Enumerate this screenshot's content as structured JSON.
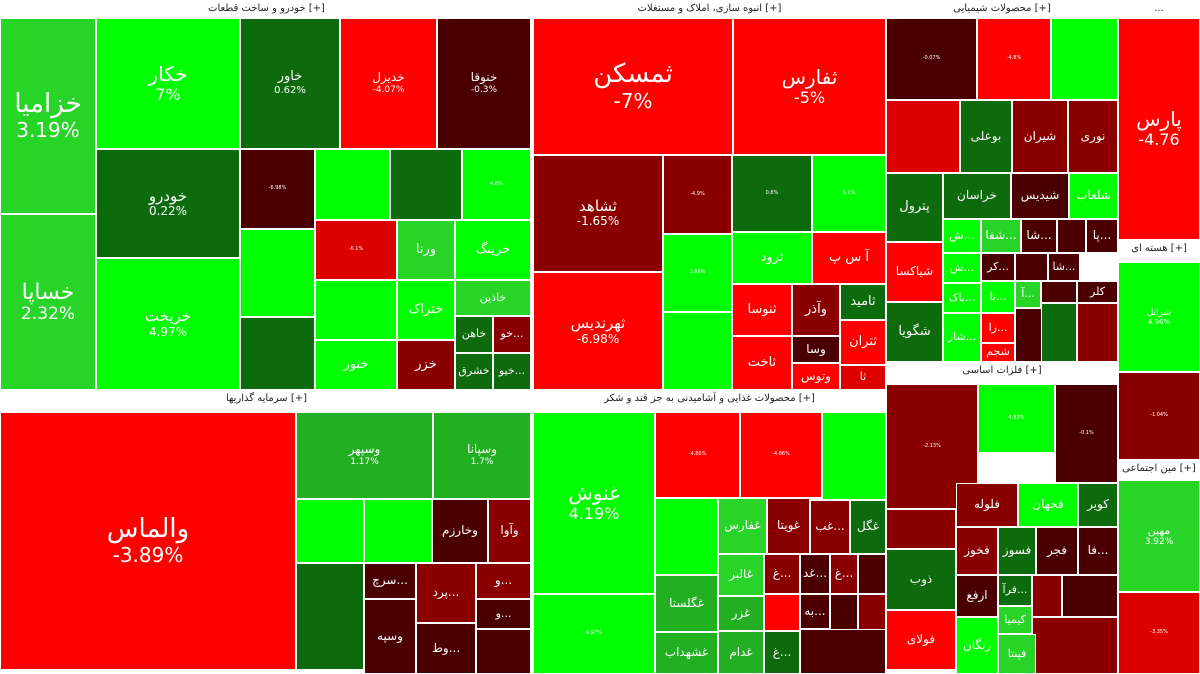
{
  "chart_data": {
    "type": "treemap",
    "title": "",
    "colors": {
      "strong_up": "#00ff00",
      "up": "#29d429",
      "mid_up": "#22b022",
      "weak_up": "#0d6b0d",
      "strong_down": "#ff0000",
      "down": "#dd0000",
      "mid_down": "#8a0000",
      "weak_down": "#4a0000"
    },
    "sectors": [
      {
        "title": "خودرو و ساخت قطعات [+]",
        "tiles": [
          {
            "symbol": "خزامیا",
            "change": "3.19%",
            "color": "up"
          },
          {
            "symbol": "خساپا",
            "change": "2.32%",
            "color": "up"
          },
          {
            "symbol": "خکار",
            "change": "7%",
            "color": "strong_up"
          },
          {
            "symbol": "خودرو",
            "change": "0.22%",
            "color": "weak_up"
          },
          {
            "symbol": "خریخت",
            "change": "4.97%",
            "color": "strong_up"
          },
          {
            "symbol": "خاور",
            "change": "0.62%",
            "color": "weak_up"
          },
          {
            "symbol": "خدیزل",
            "change": "-4.07%",
            "color": "strong_down"
          },
          {
            "symbol": "خنوقا",
            "change": "-0.3%",
            "color": "weak_down"
          },
          {
            "symbol": "",
            "change": "-6.98%",
            "color": "weak_down"
          },
          {
            "symbol": "",
            "change": "",
            "color": "strong_up"
          },
          {
            "symbol": "",
            "change": "",
            "color": "weak_up"
          },
          {
            "symbol": "",
            "change": "4.6%",
            "color": "strong_up"
          },
          {
            "symbol": "",
            "change": "",
            "color": "strong_up"
          },
          {
            "symbol": "",
            "change": "",
            "color": "weak_up"
          },
          {
            "symbol": "",
            "change": "-6.1%",
            "color": "down"
          },
          {
            "symbol": "ورنا",
            "change": "",
            "color": "up"
          },
          {
            "symbol": "خرینگ",
            "change": "",
            "color": "strong_up"
          },
          {
            "symbol": "",
            "change": "",
            "color": "strong_up"
          },
          {
            "symbol": "ختراک",
            "change": "",
            "color": "strong_up"
          },
          {
            "symbol": "خاذین",
            "change": "",
            "color": "up"
          },
          {
            "symbol": "ختور",
            "change": "",
            "color": "strong_up"
          },
          {
            "symbol": "خزر",
            "change": "",
            "color": "mid_down"
          },
          {
            "symbol": "خاهن",
            "change": "",
            "color": "weak_up"
          },
          {
            "symbol": "خو...",
            "change": "",
            "color": "mid_down"
          },
          {
            "symbol": "خشرق",
            "change": "",
            "color": "weak_up"
          },
          {
            "symbol": "خیو...",
            "change": "",
            "color": "weak_up"
          }
        ]
      },
      {
        "title": "انبوه سازی، املاک و مستغلات [+]",
        "tiles": [
          {
            "symbol": "ثمسکن",
            "change": "-7%",
            "color": "strong_down"
          },
          {
            "symbol": "ثفارس",
            "change": "-5%",
            "color": "strong_down"
          },
          {
            "symbol": "ثشاهد",
            "change": "-1.65%",
            "color": "mid_down"
          },
          {
            "symbol": "",
            "change": "-4.9%",
            "color": "mid_down"
          },
          {
            "symbol": "",
            "change": "0.8%",
            "color": "weak_up"
          },
          {
            "symbol": "",
            "change": "5.1%",
            "color": "strong_up"
          },
          {
            "symbol": "ثهرندیس",
            "change": "-6.98%",
            "color": "strong_down"
          },
          {
            "symbol": "",
            "change": "3.66%",
            "color": "strong_up"
          },
          {
            "symbol": "ثرود",
            "change": "",
            "color": "strong_up"
          },
          {
            "symbol": "آ س پ",
            "change": "",
            "color": "strong_down"
          },
          {
            "symbol": "ثنوسا",
            "change": "",
            "color": "strong_down"
          },
          {
            "symbol": "وآذر",
            "change": "",
            "color": "mid_down"
          },
          {
            "symbol": "ثامید",
            "change": "",
            "color": "weak_up"
          },
          {
            "symbol": "",
            "change": "",
            "color": "strong_up"
          },
          {
            "symbol": "ثاخت",
            "change": "",
            "color": "strong_down"
          },
          {
            "symbol": "وسا",
            "change": "",
            "color": "weak_down"
          },
          {
            "symbol": "ثتران",
            "change": "",
            "color": "strong_down"
          },
          {
            "symbol": "وتوس",
            "change": "",
            "color": "strong_down"
          },
          {
            "symbol": "ثا",
            "change": "",
            "color": "down"
          }
        ]
      },
      {
        "title": "محصولات شیمیایی [+]",
        "tiles": [
          {
            "symbol": "",
            "change": "-0.07%",
            "color": "weak_down"
          },
          {
            "symbol": "",
            "change": "-4.8%",
            "color": "strong_down"
          },
          {
            "symbol": "",
            "change": "",
            "color": "strong_up"
          },
          {
            "symbol": "",
            "change": "",
            "color": "down"
          },
          {
            "symbol": "بوعلی",
            "change": "",
            "color": "weak_up"
          },
          {
            "symbol": "شیران",
            "change": "",
            "color": "mid_down"
          },
          {
            "symbol": "نوری",
            "change": "",
            "color": "mid_down"
          },
          {
            "symbol": "پترول",
            "change": "",
            "color": "weak_up"
          },
          {
            "symbol": "خراسان",
            "change": "",
            "color": "weak_up"
          },
          {
            "symbol": "شیدیس",
            "change": "",
            "color": "weak_down"
          },
          {
            "symbol": "شلعاب",
            "change": "",
            "color": "strong_up"
          },
          {
            "symbol": "ش...",
            "change": "",
            "color": "strong_up"
          },
          {
            "symbol": "شفا...",
            "change": "",
            "color": "up"
          },
          {
            "symbol": "شا...",
            "change": "",
            "color": "weak_down"
          },
          {
            "symbol": "",
            "change": "",
            "color": "weak_down"
          },
          {
            "symbol": "پا...",
            "change": "",
            "color": "weak_down"
          },
          {
            "symbol": "شیاکسا",
            "change": "",
            "color": "strong_down"
          },
          {
            "symbol": "ش...",
            "change": "",
            "color": "strong_up"
          },
          {
            "symbol": "کر...",
            "change": "",
            "color": "weak_down"
          },
          {
            "symbol": "",
            "change": "",
            "color": "weak_down"
          },
          {
            "symbol": "شا...",
            "change": "",
            "color": "weak_down"
          },
          {
            "symbol": "پاک...",
            "change": "",
            "color": "strong_up"
          },
          {
            "symbol": "تا...",
            "change": "",
            "color": "strong_up"
          },
          {
            "symbol": "آ...",
            "change": "",
            "color": "up"
          },
          {
            "symbol": "",
            "change": "",
            "color": "weak_down"
          },
          {
            "symbol": "کلر",
            "change": "",
            "color": "weak_down"
          },
          {
            "symbol": "شگویا",
            "change": "",
            "color": "weak_up"
          },
          {
            "symbol": "شار...",
            "change": "",
            "color": "strong_up"
          },
          {
            "symbol": "زا...",
            "change": "",
            "color": "strong_down"
          },
          {
            "symbol": "شجم",
            "change": "",
            "color": "strong_down"
          }
        ]
      },
      {
        "title": "فلزات اساسی [+]",
        "tiles": [
          {
            "symbol": "",
            "change": "-2.13%",
            "color": "mid_down"
          },
          {
            "symbol": "",
            "change": "4.82%",
            "color": "strong_up"
          },
          {
            "symbol": "",
            "change": "-0.1%",
            "color": "weak_down"
          },
          {
            "symbol": "",
            "change": "",
            "color": "mid_down"
          },
          {
            "symbol": "فلوله",
            "change": "",
            "color": "mid_down"
          },
          {
            "symbol": "فجهان",
            "change": "",
            "color": "strong_up"
          },
          {
            "symbol": "کویر",
            "change": "",
            "color": "weak_up"
          },
          {
            "symbol": "فخوز",
            "change": "",
            "color": "mid_down"
          },
          {
            "symbol": "فسوز",
            "change": "",
            "color": "weak_up"
          },
          {
            "symbol": "فجر",
            "change": "",
            "color": "weak_down"
          },
          {
            "symbol": "فا...",
            "change": "",
            "color": "weak_down"
          },
          {
            "symbol": "ذوب",
            "change": "",
            "color": "weak_up"
          },
          {
            "symbol": "ارفع",
            "change": "",
            "color": "weak_down"
          },
          {
            "symbol": "فرآ...",
            "change": "",
            "color": "weak_up"
          },
          {
            "symbol": "",
            "change": "",
            "color": "mid_down"
          },
          {
            "symbol": "کیمیا",
            "change": "",
            "color": "up"
          },
          {
            "symbol": "فولای",
            "change": "",
            "color": "strong_down"
          },
          {
            "symbol": "زنگان",
            "change": "",
            "color": "strong_up"
          },
          {
            "symbol": "فپنتا",
            "change": "",
            "color": "up"
          }
        ]
      },
      {
        "title": "سرمایه گذاریها [+]",
        "tiles": [
          {
            "symbol": "والماس",
            "change": "-3.89%",
            "color": "strong_down"
          },
          {
            "symbol": "وسپهر",
            "change": "1.17%",
            "color": "mid_up"
          },
          {
            "symbol": "وسپانا",
            "change": "1.7%",
            "color": "mid_up"
          },
          {
            "symbol": "",
            "change": "",
            "color": "strong_up"
          },
          {
            "symbol": "",
            "change": "",
            "color": "strong_up"
          },
          {
            "symbol": "وخارزم",
            "change": "",
            "color": "weak_down"
          },
          {
            "symbol": "وآوا",
            "change": "",
            "color": "mid_down"
          },
          {
            "symbol": "",
            "change": "",
            "color": "weak_up"
          },
          {
            "symbol": "سرچ...",
            "change": "",
            "color": "weak_down"
          },
          {
            "symbol": "پرد...",
            "change": "",
            "color": "mid_down"
          },
          {
            "symbol": "و...",
            "change": "",
            "color": "mid_down"
          },
          {
            "symbol": "و...",
            "change": "",
            "color": "weak_down"
          },
          {
            "symbol": "وسپه",
            "change": "",
            "color": "weak_down"
          },
          {
            "symbol": "وط...",
            "change": "",
            "color": "weak_down"
          }
        ]
      },
      {
        "title": "محصولات غذایی و آشامیدنی به جز قند و شکر [+]",
        "tiles": [
          {
            "symbol": "غنوش",
            "change": "4.19%",
            "color": "strong_up"
          },
          {
            "symbol": "",
            "change": "-4.86%",
            "color": "strong_down"
          },
          {
            "symbol": "",
            "change": "-4.86%",
            "color": "strong_down"
          },
          {
            "symbol": "",
            "change": "",
            "color": "strong_up"
          },
          {
            "symbol": "",
            "change": "",
            "color": "strong_up"
          },
          {
            "symbol": "غفارس",
            "change": "",
            "color": "up"
          },
          {
            "symbol": "غویتا",
            "change": "",
            "color": "mid_down"
          },
          {
            "symbol": "غب...",
            "change": "",
            "color": "mid_down"
          },
          {
            "symbol": "غگل",
            "change": "",
            "color": "weak_up"
          },
          {
            "symbol": "غالبر",
            "change": "",
            "color": "up"
          },
          {
            "symbol": "غ...",
            "change": "",
            "color": "mid_down"
          },
          {
            "symbol": "غد...",
            "change": "",
            "color": "weak_down"
          },
          {
            "symbol": "غ...",
            "change": "",
            "color": "mid_down"
          },
          {
            "symbol": "",
            "change": "6.97%",
            "color": "strong_up"
          },
          {
            "symbol": "غگلستا",
            "change": "",
            "color": "mid_up"
          },
          {
            "symbol": "غزر",
            "change": "",
            "color": "mid_up"
          },
          {
            "symbol": "به...",
            "change": "",
            "color": "weak_down"
          },
          {
            "symbol": "غشهداب",
            "change": "",
            "color": "mid_up"
          },
          {
            "symbol": "غدام",
            "change": "",
            "color": "mid_up"
          },
          {
            "symbol": "غ...",
            "change": "",
            "color": "weak_up"
          }
        ]
      },
      {
        "title": "...",
        "tiles": [
          {
            "symbol": "پارس",
            "change": "-4.76",
            "color": "strong_down"
          }
        ]
      },
      {
        "title": "هسته ای [+]",
        "tiles": [
          {
            "symbol": "شراتل",
            "change": "4.96%",
            "color": "strong_up"
          },
          {
            "symbol": "",
            "change": "-1.04%",
            "color": "mid_down"
          }
        ]
      },
      {
        "title": "مین اجتماعی [+]",
        "tiles": [
          {
            "symbol": "مهین",
            "change": "3.92%",
            "color": "up"
          },
          {
            "symbol": "",
            "change": "-3.35%",
            "color": "down"
          }
        ]
      }
    ]
  }
}
